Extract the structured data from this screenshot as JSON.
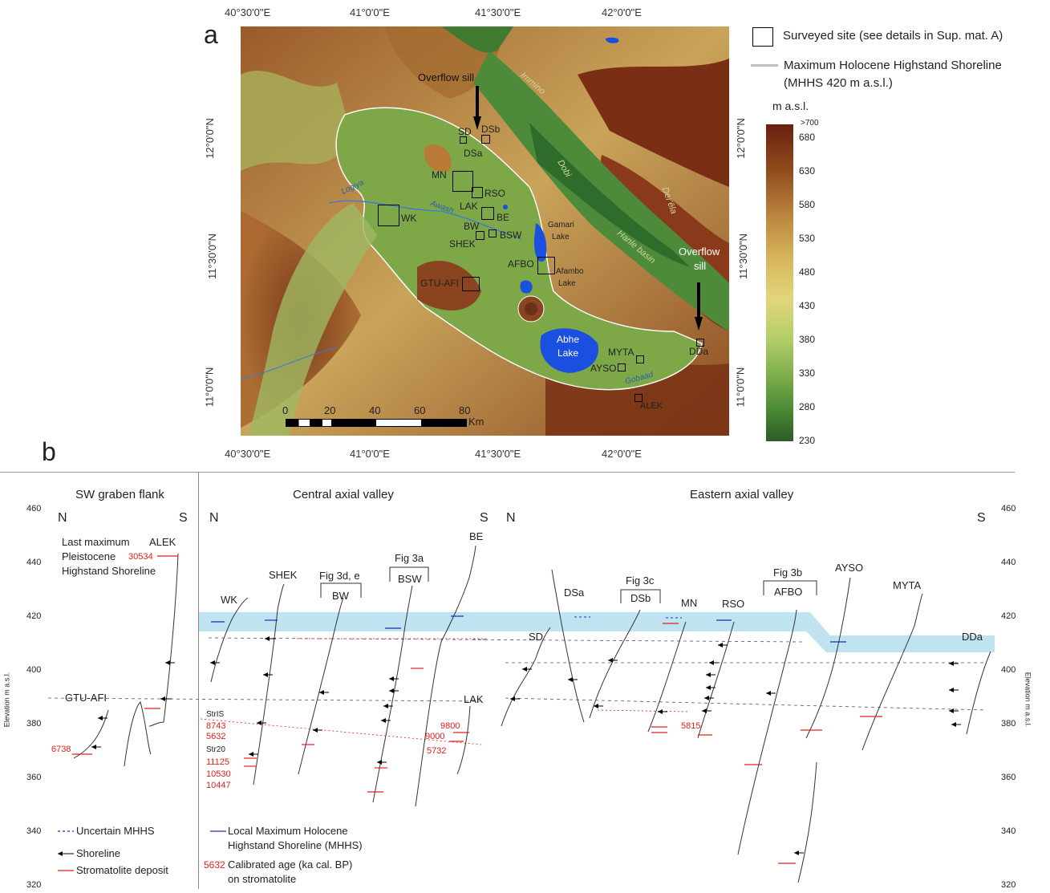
{
  "panel_a": {
    "label": "a",
    "top_lon_ticks": [
      "40°30'0\"E",
      "41°0'0\"E",
      "41°30'0\"E",
      "42°0'0\"E"
    ],
    "bottom_lon_ticks": [
      "40°30'0\"E",
      "41°0'0\"E",
      "41°30'0\"E",
      "42°0'0\"E"
    ],
    "lat_ticks": [
      "12°0'0\"N",
      "11°30'0\"N",
      "11°0'0\"N"
    ],
    "legend": {
      "surveyed_site": "Surveyed site (see details in Sup. mat. A)",
      "mhhs_line1": "Maximum Holocene Highstand Shoreline",
      "mhhs_line2": "(MHHS 420 m a.s.l.)",
      "colorbar_title": "m a.s.l.",
      "colorbar_ticks": [
        ">700",
        "680",
        "630",
        "580",
        "530",
        "480",
        "430",
        "380",
        "330",
        "280",
        "230"
      ]
    },
    "map_labels": {
      "overflow_sill_n": "Overflow sill",
      "overflow_sill_e1": "Overflow",
      "overflow_sill_e2": "sill",
      "immino": "Immino",
      "dobi": "Dobi",
      "dereila": "Der'ēla",
      "hanle": "Hanle basin",
      "logiya": "Logiya",
      "awash": "Awash",
      "gamari1": "Gamari",
      "gamari2": "Lake",
      "afambo1": "Afambo",
      "afambo2": "Lake",
      "abhe1": "Abhe",
      "abhe2": "Lake",
      "gobaad": "Gobaad"
    },
    "sites": [
      "SD",
      "DSb",
      "DSa",
      "MN",
      "RSO",
      "LAK",
      "WK",
      "BE",
      "BW",
      "BSW",
      "SHEK",
      "AFBO",
      "GTU-AFI",
      "MYTA",
      "AYSO",
      "DDa",
      "ALEK"
    ],
    "scale": {
      "ticks": [
        "0",
        "20",
        "40",
        "60",
        "80"
      ],
      "unit": "Km"
    }
  },
  "panel_b": {
    "label": "b",
    "sections": {
      "sw": "SW graben flank",
      "central": "Central axial valley",
      "eastern": "Eastern axial valley"
    },
    "compass": {
      "n": "N",
      "s": "S"
    },
    "y_ticks": [
      "460",
      "440",
      "420",
      "400",
      "380",
      "360",
      "340",
      "320"
    ],
    "y_axis_label": "Elevation m a.s.l.",
    "pleistocene_note": [
      "Last maximum",
      "Pleistocene",
      "Highstand Shoreline"
    ],
    "profiles": [
      "ALEK",
      "GTU-AFI",
      "WK",
      "SHEK",
      "BW",
      "BSW",
      "BE",
      "LAK",
      "SD",
      "DSa",
      "DSb",
      "MN",
      "RSO",
      "AFBO",
      "AYSO",
      "MYTA",
      "DDa"
    ],
    "fig_refs": [
      "Fig 3d, e",
      "Fig 3a",
      "Fig 3c",
      "Fig 3b"
    ],
    "ages": {
      "alek": "30534",
      "gtu": "6738",
      "strIS": "StrIS",
      "strIS_1": "8743",
      "strIS_2": "5632",
      "str20": "Str20",
      "str20_1": "11125",
      "str20_2": "10530",
      "str20_3": "10447",
      "lak_1": "9800",
      "lak_2": "9000",
      "lak_3": "5732",
      "rso": "5815"
    },
    "legend": {
      "uncertain": "Uncertain MHHS",
      "shoreline": "Shoreline",
      "stromatolite": "Stromatolite deposit",
      "local_mhhs_1": "Local Maximum Holocene",
      "local_mhhs_2": "Highstand Shoreline (MHHS)",
      "age_sample": "5632",
      "age_label_1": "Calibrated age (ka cal. BP)",
      "age_label_2": "on stromatolite"
    }
  },
  "colors": {
    "mhhs_band": "#bfe3f0",
    "stromatolite": "#e0201b",
    "age_text": "#e0201b",
    "local_mhhs": "#1f2db5",
    "lake": "#1a4fe0"
  }
}
